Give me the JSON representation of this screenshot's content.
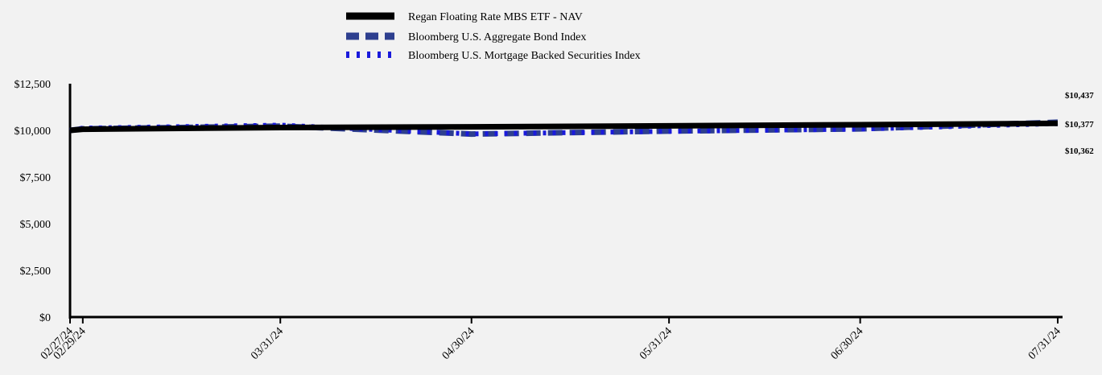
{
  "chart_data": {
    "type": "line",
    "title": "",
    "xlabel": "",
    "ylabel": "",
    "x": [
      "02/27/24",
      "02/29/24",
      "03/31/24",
      "04/30/24",
      "05/31/24",
      "06/30/24",
      "07/31/24"
    ],
    "ylim": [
      0,
      12500
    ],
    "yticks": [
      "$0",
      "$2,500",
      "$5,000",
      "$7,500",
      "$10,000",
      "$12,500"
    ],
    "ytick_values": [
      0,
      2500,
      5000,
      7500,
      10000,
      12500
    ],
    "series": [
      {
        "name": "Regan Floating Rate MBS ETF - NAV",
        "color": "#000000",
        "style": "solid",
        "values": [
          10000,
          10060,
          10150,
          10190,
          10240,
          10300,
          10377
        ]
      },
      {
        "name": "Bloomberg U.S. Aggregate Bond Index",
        "color": "#2e3f8f",
        "style": "dashed",
        "values": [
          10000,
          10080,
          10230,
          9800,
          9960,
          10080,
          10437
        ]
      },
      {
        "name": "Bloomberg U.S. Mortgage Backed Securities Index",
        "color": "#1a1adb",
        "style": "dotted",
        "values": [
          10000,
          10120,
          10280,
          9810,
          9950,
          10070,
          10362
        ]
      }
    ],
    "end_labels": [
      "$10,437",
      "$10,377",
      "$10,362"
    ],
    "legend_position": "top-center",
    "grid": false
  }
}
